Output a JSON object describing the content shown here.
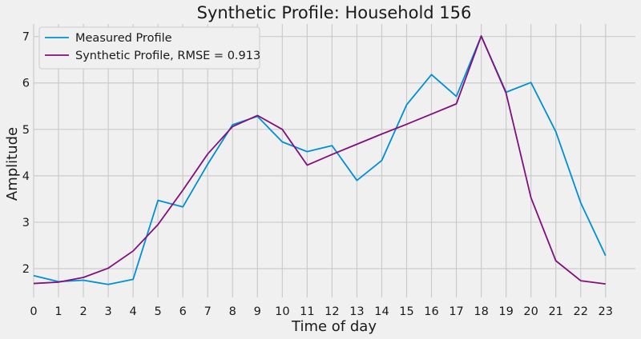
{
  "chart_data": {
    "type": "line",
    "title": "Synthetic Profile: Household 156",
    "xlabel": "Time of day",
    "ylabel": "Amplitude",
    "x": [
      0,
      1,
      2,
      3,
      4,
      5,
      6,
      7,
      8,
      9,
      10,
      11,
      12,
      13,
      14,
      15,
      16,
      17,
      18,
      19,
      20,
      21,
      22,
      23
    ],
    "x_tick_labels": [
      "0",
      "1",
      "2",
      "3",
      "4",
      "5",
      "6",
      "7",
      "8",
      "9",
      "10",
      "11",
      "12",
      "13",
      "14",
      "15",
      "16",
      "17",
      "18",
      "19",
      "20",
      "21",
      "22",
      "23"
    ],
    "y_tick_labels": [
      "2",
      "3",
      "4",
      "5",
      "6",
      "7"
    ],
    "xlim": [
      0,
      24.2
    ],
    "ylim": [
      1.38,
      7.27
    ],
    "grid": true,
    "legend_position": "top-left",
    "series": [
      {
        "name": "Measured Profile",
        "color": "#008fd5",
        "values": [
          1.85,
          1.72,
          1.75,
          1.66,
          1.77,
          3.47,
          3.33,
          4.25,
          5.1,
          5.28,
          4.73,
          4.52,
          4.65,
          3.9,
          4.33,
          5.53,
          6.18,
          5.71,
          7.01,
          5.8,
          6.01,
          4.95,
          3.42,
          2.28
        ]
      },
      {
        "name": "Synthetic Profile, RMSE = 0.913",
        "color": "#810f7c",
        "values": [
          1.68,
          1.71,
          1.81,
          2.01,
          2.38,
          2.95,
          3.69,
          4.47,
          5.06,
          5.3,
          5.0,
          4.23,
          4.46,
          4.68,
          4.9,
          5.11,
          5.33,
          5.55,
          7.01,
          5.78,
          3.53,
          2.17,
          1.74,
          1.67
        ]
      }
    ]
  }
}
